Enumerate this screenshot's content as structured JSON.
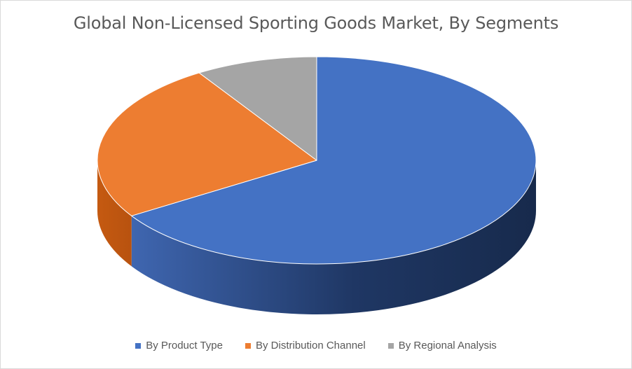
{
  "chart_data": {
    "type": "pie",
    "title": "Global Non-Licensed Sporting Goods Market, By Segments",
    "categories": [
      "By Product Type",
      "By Distribution Channel",
      "By Regional Analysis"
    ],
    "values": [
      66,
      25,
      9
    ],
    "unit": "percent (estimated share)",
    "colors": [
      "#4472C4",
      "#ED7D31",
      "#A5A5A5"
    ],
    "legend_position": "bottom",
    "style": "3D pie"
  }
}
